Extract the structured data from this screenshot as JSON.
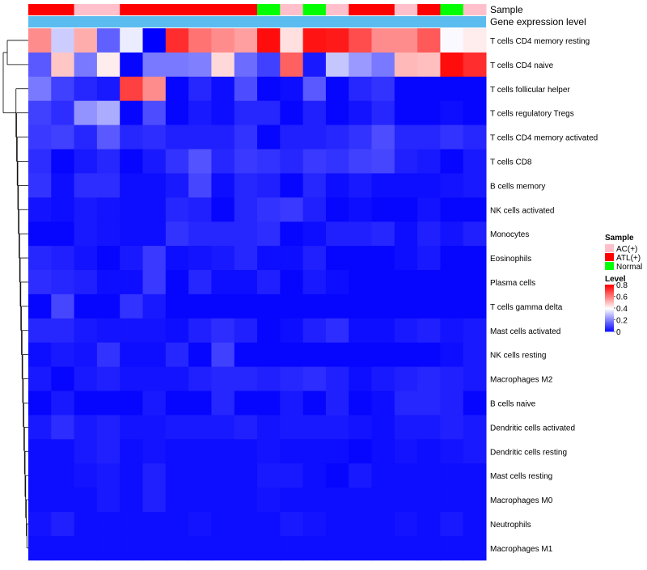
{
  "chart_data": {
    "type": "heatmap",
    "annotation_labels": {
      "sample": "Sample",
      "gene_expression": "Gene expression level"
    },
    "sample_groups": [
      "ATL(+)",
      "ATL(+)",
      "AC(+)",
      "AC(+)",
      "ATL(+)",
      "ATL(+)",
      "ATL(+)",
      "ATL(+)",
      "ATL(+)",
      "ATL(+)",
      "Normal",
      "AC(+)",
      "Normal",
      "AC(+)",
      "ATL(+)",
      "ATL(+)",
      "AC(+)",
      "ATL(+)",
      "Normal",
      "AC(+)"
    ],
    "rows": [
      "T cells CD4 memory resting",
      "T cells CD4 naive",
      "T cells follicular helper",
      "T cells regulatory  Tregs",
      "T cells CD4 memory activated",
      "T cells CD8",
      "B cells memory",
      "NK cells activated",
      "Monocytes",
      "Eosinophils",
      "Plasma cells",
      "T cells gamma delta",
      "Mast cells activated",
      "NK cells resting",
      "Macrophages M2",
      "B cells naive",
      "Dendritic cells activated",
      "Dendritic cells resting",
      "Mast cells resting",
      "Macrophages M0",
      "Neutrophils",
      "Macrophages M1"
    ],
    "values": [
      [
        0.58,
        0.32,
        0.53,
        0.15,
        0.37,
        0.0,
        0.73,
        0.62,
        0.58,
        0.55,
        0.78,
        0.45,
        0.77,
        0.76,
        0.68,
        0.58,
        0.58,
        0.66,
        0.39,
        0.43
      ],
      [
        0.14,
        0.49,
        0.19,
        0.43,
        0.01,
        0.19,
        0.19,
        0.2,
        0.46,
        0.17,
        0.1,
        0.65,
        0.04,
        0.31,
        0.24,
        0.19,
        0.51,
        0.5,
        0.78,
        0.73
      ],
      [
        0.19,
        0.1,
        0.06,
        0.04,
        0.7,
        0.58,
        0.01,
        0.06,
        0.02,
        0.12,
        0.01,
        0.02,
        0.14,
        0.01,
        0.06,
        0.08,
        0.01,
        0.01,
        0.01,
        0.01
      ],
      [
        0.1,
        0.07,
        0.23,
        0.27,
        0.01,
        0.12,
        0.01,
        0.04,
        0.02,
        0.06,
        0.06,
        0.01,
        0.05,
        0.01,
        0.03,
        0.06,
        0.01,
        0.01,
        0.02,
        0.01
      ],
      [
        0.09,
        0.1,
        0.06,
        0.14,
        0.06,
        0.07,
        0.05,
        0.05,
        0.05,
        0.08,
        0.01,
        0.05,
        0.05,
        0.06,
        0.08,
        0.12,
        0.06,
        0.06,
        0.08,
        0.06
      ],
      [
        0.07,
        0.01,
        0.04,
        0.06,
        0.01,
        0.04,
        0.08,
        0.13,
        0.06,
        0.09,
        0.08,
        0.06,
        0.09,
        0.08,
        0.1,
        0.11,
        0.05,
        0.04,
        0.01,
        0.04
      ],
      [
        0.08,
        0.02,
        0.07,
        0.07,
        0.02,
        0.02,
        0.04,
        0.11,
        0.02,
        0.06,
        0.05,
        0.01,
        0.06,
        0.02,
        0.04,
        0.02,
        0.02,
        0.02,
        0.03,
        0.04
      ],
      [
        0.03,
        0.02,
        0.04,
        0.03,
        0.02,
        0.02,
        0.06,
        0.05,
        0.01,
        0.06,
        0.08,
        0.09,
        0.05,
        0.01,
        0.02,
        0.01,
        0.01,
        0.03,
        0.01,
        0.01
      ],
      [
        0.01,
        0.01,
        0.04,
        0.03,
        0.02,
        0.02,
        0.08,
        0.06,
        0.06,
        0.06,
        0.07,
        0.01,
        0.02,
        0.05,
        0.05,
        0.06,
        0.02,
        0.05,
        0.03,
        0.05
      ],
      [
        0.06,
        0.05,
        0.03,
        0.01,
        0.04,
        0.09,
        0.02,
        0.03,
        0.04,
        0.06,
        0.02,
        0.02,
        0.05,
        0.01,
        0.01,
        0.01,
        0.02,
        0.04,
        0.01,
        0.01
      ],
      [
        0.07,
        0.06,
        0.05,
        0.02,
        0.02,
        0.09,
        0.01,
        0.06,
        0.02,
        0.02,
        0.05,
        0.01,
        0.04,
        0.02,
        0.01,
        0.01,
        0.01,
        0.01,
        0.01,
        0.01
      ],
      [
        0.01,
        0.11,
        0.01,
        0.01,
        0.08,
        0.04,
        0.01,
        0.01,
        0.01,
        0.01,
        0.01,
        0.01,
        0.01,
        0.01,
        0.01,
        0.01,
        0.01,
        0.01,
        0.01,
        0.01
      ],
      [
        0.06,
        0.06,
        0.04,
        0.03,
        0.03,
        0.03,
        0.02,
        0.05,
        0.07,
        0.05,
        0.01,
        0.02,
        0.05,
        0.07,
        0.02,
        0.02,
        0.04,
        0.05,
        0.03,
        0.04
      ],
      [
        0.02,
        0.04,
        0.03,
        0.08,
        0.02,
        0.02,
        0.06,
        0.01,
        0.1,
        0.01,
        0.01,
        0.01,
        0.01,
        0.01,
        0.01,
        0.01,
        0.01,
        0.01,
        0.02,
        0.04
      ],
      [
        0.04,
        0.01,
        0.04,
        0.05,
        0.03,
        0.03,
        0.03,
        0.05,
        0.06,
        0.06,
        0.05,
        0.06,
        0.07,
        0.05,
        0.02,
        0.04,
        0.05,
        0.06,
        0.05,
        0.04
      ],
      [
        0.01,
        0.04,
        0.01,
        0.01,
        0.01,
        0.04,
        0.01,
        0.01,
        0.06,
        0.01,
        0.01,
        0.04,
        0.01,
        0.05,
        0.01,
        0.02,
        0.06,
        0.06,
        0.05,
        0.01
      ],
      [
        0.04,
        0.07,
        0.04,
        0.05,
        0.03,
        0.03,
        0.04,
        0.04,
        0.04,
        0.05,
        0.03,
        0.04,
        0.04,
        0.04,
        0.03,
        0.02,
        0.04,
        0.04,
        0.05,
        0.04
      ],
      [
        0.02,
        0.02,
        0.04,
        0.05,
        0.02,
        0.03,
        0.02,
        0.02,
        0.02,
        0.02,
        0.03,
        0.02,
        0.02,
        0.02,
        0.01,
        0.02,
        0.03,
        0.02,
        0.03,
        0.04
      ],
      [
        0.02,
        0.02,
        0.03,
        0.04,
        0.02,
        0.05,
        0.02,
        0.02,
        0.02,
        0.02,
        0.04,
        0.04,
        0.02,
        0.01,
        0.04,
        0.02,
        0.02,
        0.02,
        0.02,
        0.02
      ],
      [
        0.02,
        0.02,
        0.02,
        0.04,
        0.02,
        0.05,
        0.02,
        0.02,
        0.02,
        0.02,
        0.03,
        0.02,
        0.02,
        0.02,
        0.02,
        0.02,
        0.02,
        0.02,
        0.02,
        0.02
      ],
      [
        0.03,
        0.05,
        0.02,
        0.02,
        0.02,
        0.02,
        0.02,
        0.03,
        0.02,
        0.02,
        0.02,
        0.04,
        0.03,
        0.02,
        0.02,
        0.02,
        0.03,
        0.02,
        0.04,
        0.02
      ],
      [
        0.02,
        0.02,
        0.02,
        0.02,
        0.02,
        0.02,
        0.02,
        0.02,
        0.02,
        0.02,
        0.02,
        0.02,
        0.02,
        0.02,
        0.02,
        0.02,
        0.02,
        0.02,
        0.02,
        0.02
      ]
    ],
    "sample_legend": {
      "title": "Sample",
      "items": [
        "AC(+)",
        "ATL(+)",
        "Normal"
      ]
    },
    "level_legend": {
      "title": "Level",
      "ticks": [
        "0.8",
        "0.6",
        "0.4",
        "0.2",
        "0"
      ],
      "range": [
        0,
        0.8
      ]
    },
    "legend_position": "right"
  },
  "colors": {
    "AC(+)": "#ffc0cb",
    "ATL(+)": "#ff0000",
    "Normal": "#00ff00",
    "gene_expression_bar": "#5bbcf0",
    "low": "#0000ff",
    "mid": "#ffffff",
    "high": "#ff0000",
    "dendrogram": "#000000"
  }
}
